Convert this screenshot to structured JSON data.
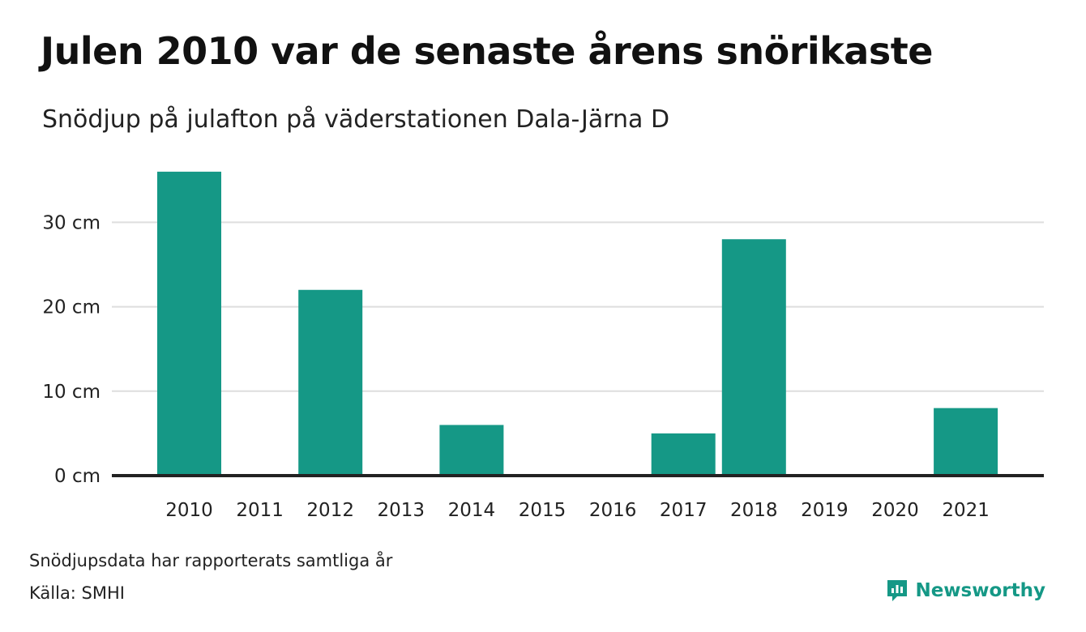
{
  "header": {
    "title": "Julen 2010 var de senaste årens snörikaste",
    "subtitle": "Snödjup på julafton på väderstationen Dala-Järna D"
  },
  "footer": {
    "note": "Snödjupsdata har rapporterats samtliga år",
    "source": "Källa: SMHI",
    "brand": "Newsworthy"
  },
  "colors": {
    "bar": "#159886",
    "grid": "#dedede",
    "baseline": "#222222",
    "brand": "#159886"
  },
  "icons": {
    "brand": "newsworthy-logo-icon"
  },
  "chart_data": {
    "type": "bar",
    "categories": [
      "2010",
      "2011",
      "2012",
      "2013",
      "2014",
      "2015",
      "2016",
      "2017",
      "2018",
      "2019",
      "2020",
      "2021"
    ],
    "values": [
      36,
      0,
      22,
      0,
      6,
      0,
      0,
      5,
      28,
      0,
      0,
      8
    ],
    "y_ticks": [
      0,
      10,
      20,
      30
    ],
    "y_tick_labels": [
      "0 cm",
      "10 cm",
      "20 cm",
      "30 cm"
    ],
    "ylim": [
      0,
      36
    ],
    "grid": true,
    "xlabel": "",
    "ylabel": ""
  }
}
